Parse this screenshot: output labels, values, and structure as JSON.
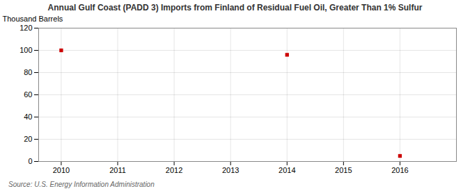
{
  "chart_data": {
    "type": "scatter",
    "title": "Annual Gulf Coast (PADD 3) Imports from Finland of Residual Fuel Oil, Greater Than 1% Sulfur",
    "ylabel": "Thousand Barrels",
    "source": "Source: U.S. Energy Information Administration",
    "x": [
      2010,
      2014,
      2016
    ],
    "values": [
      100,
      96,
      5
    ],
    "color": "#cc0000",
    "marker": "square",
    "xlim": [
      2009.6,
      2017.0
    ],
    "ylim": [
      0,
      120
    ],
    "xticks": [
      2010,
      2011,
      2012,
      2013,
      2014,
      2015,
      2016
    ],
    "yticks": [
      0,
      20,
      40,
      60,
      80,
      100,
      120
    ],
    "grid": true
  }
}
